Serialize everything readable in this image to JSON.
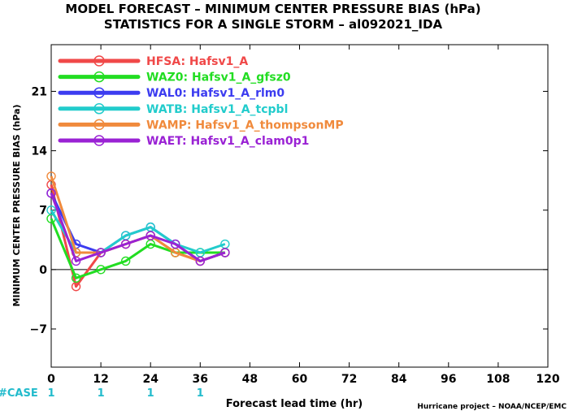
{
  "chart_data": {
    "type": "line",
    "title": "MODEL FORECAST – MINIMUM CENTER PRESSURE BIAS (hPa)",
    "subtitle": "STATISTICS FOR A SINGLE STORM – al092021_IDA",
    "xlabel": "Forecast lead time (hr)",
    "ylabel": "MINIMUM CENTER PRESSURE BIAS (hPa)",
    "credit": "Hurricane project – NOAA/NCEP/EMC",
    "xlim": [
      0,
      120
    ],
    "ylim": [
      -11.5,
      26.5
    ],
    "x_ticks": [
      0,
      12,
      24,
      36,
      48,
      60,
      72,
      84,
      96,
      108,
      120
    ],
    "y_ticks": [
      -7,
      0,
      7,
      14,
      21
    ],
    "case_label": "#CASE",
    "case_counts": [
      {
        "x": 0,
        "label": "1"
      },
      {
        "x": 12,
        "label": "1"
      },
      {
        "x": 24,
        "label": "1"
      },
      {
        "x": 36,
        "label": "1"
      }
    ],
    "x": [
      0,
      6,
      12,
      18,
      24,
      30,
      36,
      42
    ],
    "series": [
      {
        "name": "HFSA:  Hafsv1_A",
        "color": "#f04848",
        "values": [
          10,
          -2,
          2,
          3,
          4,
          2,
          1,
          2
        ]
      },
      {
        "name": "WAZ0:  Hafsv1_A_gfsz0",
        "color": "#22dd22",
        "values": [
          6,
          -1,
          0,
          1,
          3,
          2,
          2,
          2
        ]
      },
      {
        "name": "WAL0:  Hafsv1_A_rlm0",
        "color": "#3c3cf0",
        "values": [
          9,
          3,
          2,
          4,
          5,
          3,
          1,
          2
        ]
      },
      {
        "name": "WATB:  Hafsv1_A_tcpbl",
        "color": "#22cccc",
        "values": [
          7,
          2,
          2,
          4,
          5,
          3,
          2,
          3
        ]
      },
      {
        "name": "WAMP:  Hafsv1_A_thompsonMP",
        "color": "#f08a3c",
        "values": [
          11,
          2,
          2,
          3,
          4,
          2,
          1,
          2
        ]
      },
      {
        "name": "WAET:  Hafsv1_A_clam0p1",
        "color": "#9a22d4",
        "values": [
          9,
          1,
          2,
          3,
          4,
          3,
          1,
          2
        ]
      }
    ],
    "grid": false,
    "legend_position": "top-left"
  }
}
